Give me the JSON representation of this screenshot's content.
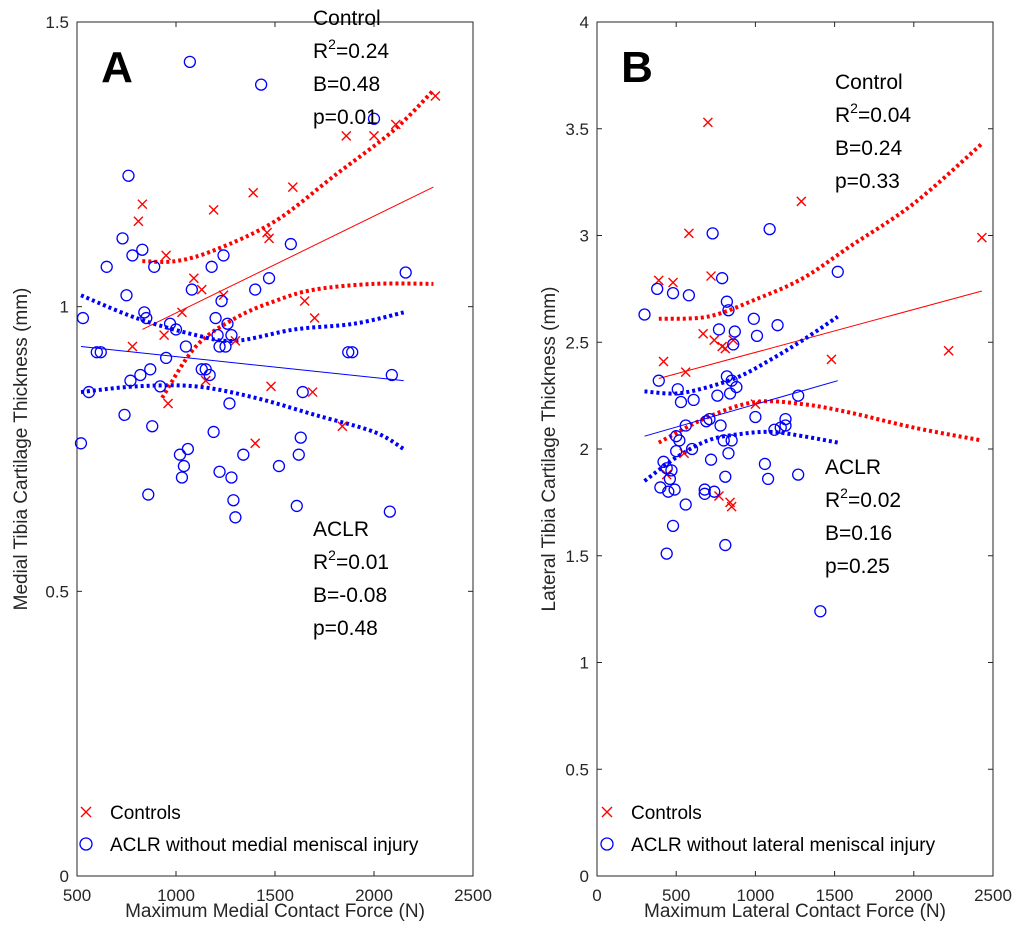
{
  "chart_data": [
    {
      "type": "scatter",
      "panel_label": "A",
      "xlabel": "Maximum Medial Contact Force (N)",
      "ylabel": "Medial Tibia Cartilage Thickness (mm)",
      "xlim": [
        500,
        2500
      ],
      "ylim": [
        0,
        1.5
      ],
      "xticks": [
        500,
        1000,
        1500,
        2000,
        2500
      ],
      "yticks": [
        0,
        0.5,
        1,
        1.5
      ],
      "ytick_labels": [
        "0",
        "0.5",
        "1",
        "1.5"
      ],
      "grid": false,
      "legend_position": "bottom-left",
      "colors": {
        "control": "#ff0000",
        "aclr": "#0000ff"
      },
      "series": [
        {
          "name": "Controls",
          "marker": "x",
          "points": [
            [
              780,
              0.93
            ],
            [
              810,
              1.15
            ],
            [
              830,
              1.18
            ],
            [
              940,
              0.95
            ],
            [
              950,
              1.09
            ],
            [
              960,
              0.83
            ],
            [
              1030,
              0.99
            ],
            [
              1090,
              1.05
            ],
            [
              1130,
              1.03
            ],
            [
              1150,
              0.87
            ],
            [
              1190,
              1.17
            ],
            [
              1240,
              1.02
            ],
            [
              1300,
              0.94
            ],
            [
              1390,
              1.2
            ],
            [
              1400,
              0.76
            ],
            [
              1460,
              1.13
            ],
            [
              1470,
              1.12
            ],
            [
              1480,
              0.86
            ],
            [
              1590,
              1.21
            ],
            [
              1650,
              1.01
            ],
            [
              1690,
              0.85
            ],
            [
              1700,
              0.98
            ],
            [
              1840,
              0.79
            ],
            [
              1860,
              1.3
            ],
            [
              2000,
              1.3
            ],
            [
              2110,
              1.32
            ],
            [
              2310,
              1.37
            ]
          ]
        },
        {
          "name": "ACLR without medial meniscal injury",
          "marker": "o",
          "points": [
            [
              520,
              0.76
            ],
            [
              530,
              0.98
            ],
            [
              560,
              0.85
            ],
            [
              600,
              0.92
            ],
            [
              620,
              0.92
            ],
            [
              650,
              1.07
            ],
            [
              730,
              1.12
            ],
            [
              740,
              0.81
            ],
            [
              750,
              1.02
            ],
            [
              760,
              1.23
            ],
            [
              770,
              0.87
            ],
            [
              780,
              1.09
            ],
            [
              820,
              0.88
            ],
            [
              830,
              1.1
            ],
            [
              840,
              0.99
            ],
            [
              850,
              0.98
            ],
            [
              860,
              0.67
            ],
            [
              870,
              0.89
            ],
            [
              880,
              0.79
            ],
            [
              890,
              1.07
            ],
            [
              920,
              0.86
            ],
            [
              950,
              0.91
            ],
            [
              970,
              0.97
            ],
            [
              1000,
              0.96
            ],
            [
              1020,
              0.74
            ],
            [
              1030,
              0.7
            ],
            [
              1040,
              0.72
            ],
            [
              1050,
              0.93
            ],
            [
              1060,
              0.75
            ],
            [
              1070,
              1.43
            ],
            [
              1080,
              1.03
            ],
            [
              1130,
              0.89
            ],
            [
              1150,
              0.89
            ],
            [
              1170,
              0.88
            ],
            [
              1180,
              1.07
            ],
            [
              1190,
              0.78
            ],
            [
              1200,
              0.98
            ],
            [
              1210,
              0.95
            ],
            [
              1220,
              0.93
            ],
            [
              1220,
              0.71
            ],
            [
              1230,
              1.01
            ],
            [
              1240,
              1.09
            ],
            [
              1250,
              0.93
            ],
            [
              1260,
              0.97
            ],
            [
              1270,
              0.83
            ],
            [
              1280,
              0.95
            ],
            [
              1280,
              0.7
            ],
            [
              1290,
              0.66
            ],
            [
              1300,
              0.63
            ],
            [
              1340,
              0.74
            ],
            [
              1400,
              1.03
            ],
            [
              1430,
              1.39
            ],
            [
              1470,
              1.05
            ],
            [
              1520,
              0.72
            ],
            [
              1580,
              1.11
            ],
            [
              1610,
              0.65
            ],
            [
              1620,
              0.74
            ],
            [
              1630,
              0.77
            ],
            [
              1640,
              0.85
            ],
            [
              1870,
              0.92
            ],
            [
              1890,
              0.92
            ],
            [
              2000,
              1.33
            ],
            [
              2080,
              0.64
            ],
            [
              2090,
              0.88
            ],
            [
              2160,
              1.06
            ]
          ]
        }
      ],
      "fits": [
        {
          "series": "Controls",
          "line": [
            [
              830,
              0.96
            ],
            [
              2300,
              1.21
            ]
          ],
          "ci_lower": [
            [
              930,
              0.84
            ],
            [
              1100,
              0.93
            ],
            [
              1300,
              0.98
            ],
            [
              1500,
              1.01
            ],
            [
              1700,
              1.03
            ],
            [
              2000,
              1.04
            ],
            [
              2300,
              1.04
            ]
          ],
          "ci_upper": [
            [
              830,
              1.08
            ],
            [
              1000,
              1.08
            ],
            [
              1200,
              1.1
            ],
            [
              1500,
              1.15
            ],
            [
              1800,
              1.23
            ],
            [
              2100,
              1.31
            ],
            [
              2300,
              1.38
            ]
          ]
        },
        {
          "series": "ACLR without medial meniscal injury",
          "line": [
            [
              520,
              0.93
            ],
            [
              2150,
              0.87
            ]
          ],
          "ci_lower": [
            [
              520,
              0.85
            ],
            [
              800,
              0.86
            ],
            [
              1100,
              0.86
            ],
            [
              1400,
              0.84
            ],
            [
              1700,
              0.81
            ],
            [
              2000,
              0.78
            ],
            [
              2150,
              0.75
            ]
          ],
          "ci_upper": [
            [
              520,
              1.02
            ],
            [
              800,
              0.98
            ],
            [
              1100,
              0.95
            ],
            [
              1300,
              0.94
            ],
            [
              1600,
              0.96
            ],
            [
              1900,
              0.97
            ],
            [
              2150,
              0.99
            ]
          ]
        }
      ],
      "annotations": [
        {
          "lines": [
            "Control",
            "R^2=0.24",
            "B=0.48",
            "p=0.01"
          ]
        },
        {
          "lines": [
            "ACLR",
            "R^2=0.01",
            "B=-0.08",
            "p=0.48"
          ]
        }
      ]
    },
    {
      "type": "scatter",
      "panel_label": "B",
      "xlabel": "Maximum Lateral Contact Force (N)",
      "ylabel": "Lateral Tibia Cartilage Thickness (mm)",
      "xlim": [
        0,
        2500
      ],
      "ylim": [
        0,
        4
      ],
      "xticks": [
        0,
        500,
        1000,
        1500,
        2000,
        2500
      ],
      "yticks": [
        0,
        0.5,
        1,
        1.5,
        2,
        2.5,
        3,
        3.5,
        4
      ],
      "ytick_labels": [
        "0",
        "0.5",
        "1",
        "1.5",
        "2",
        "2.5",
        "3",
        "3.5",
        "4"
      ],
      "grid": false,
      "legend_position": "bottom-left",
      "colors": {
        "control": "#ff0000",
        "aclr": "#0000ff"
      },
      "series": [
        {
          "name": "Controls",
          "marker": "x",
          "points": [
            [
              390,
              2.79
            ],
            [
              420,
              2.41
            ],
            [
              440,
              1.88
            ],
            [
              480,
              2.78
            ],
            [
              550,
              1.98
            ],
            [
              560,
              2.36
            ],
            [
              580,
              3.01
            ],
            [
              670,
              2.54
            ],
            [
              700,
              3.53
            ],
            [
              720,
              2.81
            ],
            [
              740,
              2.51
            ],
            [
              770,
              1.78
            ],
            [
              790,
              2.48
            ],
            [
              810,
              2.47
            ],
            [
              840,
              1.75
            ],
            [
              850,
              1.73
            ],
            [
              860,
              2.51
            ],
            [
              1000,
              2.21
            ],
            [
              1290,
              3.16
            ],
            [
              1480,
              2.42
            ],
            [
              2220,
              2.46
            ],
            [
              2430,
              2.99
            ]
          ]
        },
        {
          "name": "ACLR without lateral meniscal injury",
          "marker": "o",
          "points": [
            [
              300,
              2.63
            ],
            [
              380,
              2.75
            ],
            [
              390,
              2.32
            ],
            [
              400,
              1.82
            ],
            [
              420,
              1.94
            ],
            [
              440,
              1.51
            ],
            [
              440,
              1.91
            ],
            [
              450,
              1.8
            ],
            [
              460,
              1.86
            ],
            [
              470,
              1.9
            ],
            [
              480,
              1.64
            ],
            [
              480,
              2.73
            ],
            [
              490,
              1.81
            ],
            [
              500,
              2.06
            ],
            [
              500,
              1.99
            ],
            [
              510,
              2.28
            ],
            [
              520,
              2.04
            ],
            [
              530,
              2.22
            ],
            [
              560,
              1.74
            ],
            [
              560,
              2.11
            ],
            [
              580,
              2.72
            ],
            [
              600,
              2.0
            ],
            [
              610,
              2.23
            ],
            [
              680,
              1.81
            ],
            [
              680,
              1.79
            ],
            [
              690,
              2.13
            ],
            [
              710,
              2.14
            ],
            [
              720,
              1.95
            ],
            [
              730,
              3.01
            ],
            [
              740,
              1.8
            ],
            [
              760,
              2.25
            ],
            [
              770,
              2.56
            ],
            [
              780,
              2.11
            ],
            [
              790,
              2.8
            ],
            [
              800,
              2.04
            ],
            [
              810,
              1.55
            ],
            [
              810,
              1.87
            ],
            [
              820,
              2.69
            ],
            [
              820,
              2.34
            ],
            [
              830,
              2.65
            ],
            [
              830,
              1.98
            ],
            [
              840,
              2.26
            ],
            [
              850,
              2.32
            ],
            [
              850,
              2.04
            ],
            [
              860,
              2.49
            ],
            [
              870,
              2.55
            ],
            [
              880,
              2.29
            ],
            [
              990,
              2.61
            ],
            [
              1000,
              2.15
            ],
            [
              1010,
              2.53
            ],
            [
              1060,
              1.93
            ],
            [
              1080,
              1.86
            ],
            [
              1090,
              3.03
            ],
            [
              1120,
              2.09
            ],
            [
              1140,
              2.58
            ],
            [
              1160,
              2.1
            ],
            [
              1190,
              2.11
            ],
            [
              1190,
              2.14
            ],
            [
              1270,
              2.25
            ],
            [
              1270,
              1.88
            ],
            [
              1410,
              1.24
            ],
            [
              1520,
              2.83
            ]
          ]
        }
      ],
      "fits": [
        {
          "series": "Controls",
          "line": [
            [
              390,
              2.33
            ],
            [
              2430,
              2.74
            ]
          ],
          "ci_lower": [
            [
              390,
              2.03
            ],
            [
              700,
              2.15
            ],
            [
              1000,
              2.22
            ],
            [
              1300,
              2.21
            ],
            [
              1600,
              2.17
            ],
            [
              2000,
              2.1
            ],
            [
              2430,
              2.04
            ]
          ],
          "ci_upper": [
            [
              390,
              2.61
            ],
            [
              700,
              2.62
            ],
            [
              1000,
              2.7
            ],
            [
              1300,
              2.8
            ],
            [
              1600,
              2.95
            ],
            [
              2000,
              3.15
            ],
            [
              2430,
              3.43
            ]
          ]
        },
        {
          "series": "ACLR without lateral meniscal injury",
          "line": [
            [
              300,
              2.06
            ],
            [
              1520,
              2.32
            ]
          ],
          "ci_lower": [
            [
              300,
              1.85
            ],
            [
              500,
              1.96
            ],
            [
              700,
              2.04
            ],
            [
              900,
              2.07
            ],
            [
              1100,
              2.08
            ],
            [
              1300,
              2.06
            ],
            [
              1520,
              2.03
            ]
          ],
          "ci_upper": [
            [
              300,
              2.27
            ],
            [
              500,
              2.26
            ],
            [
              700,
              2.29
            ],
            [
              900,
              2.34
            ],
            [
              1100,
              2.42
            ],
            [
              1300,
              2.51
            ],
            [
              1520,
              2.62
            ]
          ]
        }
      ],
      "annotations": [
        {
          "lines": [
            "Control",
            "R^2=0.04",
            "B=0.24",
            "p=0.33"
          ]
        },
        {
          "lines": [
            "ACLR",
            "R^2=0.02",
            "B=0.16",
            "p=0.25"
          ]
        }
      ]
    }
  ]
}
